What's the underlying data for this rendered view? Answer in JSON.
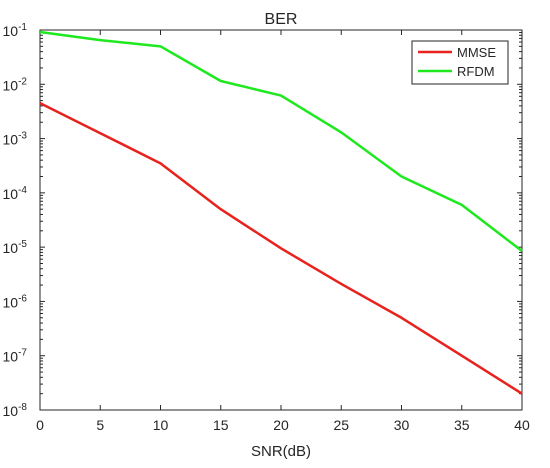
{
  "chart_data": {
    "type": "line",
    "title": "BER",
    "xlabel": "SNR(dB)",
    "ylabel": "",
    "xlim": [
      0,
      40
    ],
    "ylim": [
      1e-08,
      0.1
    ],
    "yscale": "log",
    "grid": false,
    "legend_position": "top-right",
    "x_ticks": [
      "0",
      "5",
      "10",
      "15",
      "20",
      "25",
      "30",
      "35",
      "40"
    ],
    "y_ticks": [
      {
        "base": "10",
        "exp": "-8"
      },
      {
        "base": "10",
        "exp": "-7"
      },
      {
        "base": "10",
        "exp": "-6"
      },
      {
        "base": "10",
        "exp": "-5"
      },
      {
        "base": "10",
        "exp": "-4"
      },
      {
        "base": "10",
        "exp": "-3"
      },
      {
        "base": "10",
        "exp": "-2"
      },
      {
        "base": "10",
        "exp": "-1"
      }
    ],
    "series": [
      {
        "name": "MMSE",
        "color": "#e8221c",
        "x": [
          0,
          10,
          15,
          20,
          25,
          30,
          35,
          40
        ],
        "y": [
          0.0045,
          0.00035,
          5e-05,
          9.5e-06,
          2.1e-06,
          5e-07,
          1e-07,
          2e-08
        ]
      },
      {
        "name": "RFDM",
        "color": "#1ee81e",
        "x": [
          0,
          5,
          10,
          15,
          20,
          25,
          30,
          35,
          40
        ],
        "y": [
          0.092,
          0.065,
          0.05,
          0.0115,
          0.0062,
          0.0013,
          0.0002,
          6e-05,
          8.5e-06
        ]
      }
    ]
  }
}
